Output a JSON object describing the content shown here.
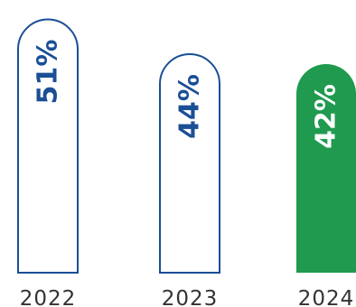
{
  "chart_data": {
    "type": "bar",
    "categories": [
      "2022",
      "2023",
      "2024"
    ],
    "values": [
      51,
      44,
      42
    ],
    "value_labels": [
      "51%",
      "44%",
      "42%"
    ],
    "title": "",
    "xlabel": "",
    "ylabel": "",
    "grid": false,
    "legend": "none",
    "highlight_index": 2,
    "colors": {
      "outline": "#1a4f96",
      "highlight_fill": "#1f9a4f",
      "highlight_text": "#ffffff",
      "text": "#1a4f96",
      "tick": "#333333"
    }
  }
}
